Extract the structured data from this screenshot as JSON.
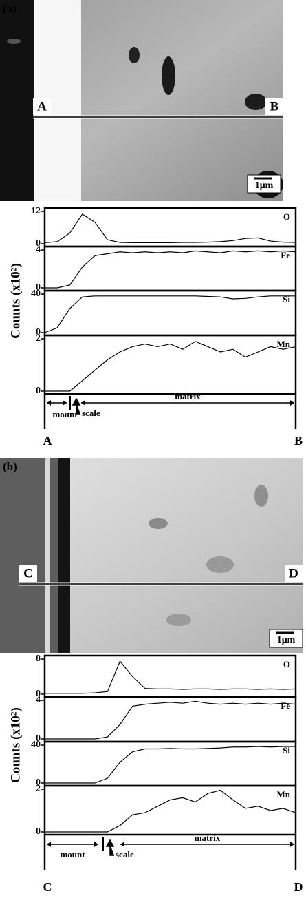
{
  "panels": [
    {
      "label": "(a)",
      "start": "A",
      "end": "B",
      "scale_bar": "1μm",
      "y_title": "Counts (x10²)",
      "regions": [
        "mount",
        "scale",
        "matrix"
      ],
      "traces": [
        {
          "element": "O",
          "ylim": [
            0,
            12
          ],
          "yticks": [
            0,
            12
          ],
          "values": [
            0.4,
            0.8,
            4,
            11,
            8,
            1.5,
            0.5,
            0.4,
            0.4,
            0.4,
            0.4,
            0.5,
            0.5,
            0.6,
            0.8,
            1.2,
            2,
            2.2,
            1,
            0.6,
            0.5
          ]
        },
        {
          "element": "Fe",
          "ylim": [
            0,
            4
          ],
          "yticks": [
            0,
            4
          ],
          "values": [
            0,
            0,
            0.3,
            2.2,
            3.4,
            3.6,
            3.8,
            3.7,
            3.8,
            3.7,
            3.8,
            3.7,
            3.9,
            3.8,
            3.7,
            3.9,
            3.8,
            3.9,
            3.8,
            3.9,
            3.8
          ]
        },
        {
          "element": "Si",
          "ylim": [
            0,
            40
          ],
          "yticks": [
            0,
            40
          ],
          "values": [
            0,
            5,
            25,
            37,
            38,
            38,
            38,
            38,
            38,
            38,
            38,
            38,
            38,
            37.5,
            37,
            35,
            35.5,
            37,
            38,
            38,
            38
          ]
        },
        {
          "element": "Mn",
          "ylim": [
            0,
            2
          ],
          "yticks": [
            0,
            2
          ],
          "values": [
            0,
            0,
            0,
            0.4,
            0.8,
            1.2,
            1.5,
            1.7,
            1.8,
            1.7,
            1.8,
            1.6,
            1.9,
            1.7,
            1.5,
            1.6,
            1.3,
            1.5,
            1.7,
            1.6,
            1.7
          ]
        }
      ]
    },
    {
      "label": "(b)",
      "start": "C",
      "end": "D",
      "scale_bar": "1μm",
      "y_title": "Counts (x10²)",
      "regions": [
        "mount",
        "scale",
        "matrix"
      ],
      "traces": [
        {
          "element": "O",
          "ylim": [
            0,
            8
          ],
          "yticks": [
            0,
            8
          ],
          "values": [
            0.2,
            0.2,
            0.2,
            0.2,
            0.3,
            0.6,
            7.5,
            4,
            1.3,
            1.2,
            1.2,
            1.1,
            1.2,
            1.2,
            1.1,
            1.2,
            1.2,
            1.1,
            1.2,
            1.1,
            1.2
          ]
        },
        {
          "element": "Fe",
          "ylim": [
            0,
            4
          ],
          "yticks": [
            0,
            4
          ],
          "values": [
            0,
            0,
            0,
            0,
            0,
            0.2,
            1.5,
            3.4,
            3.6,
            3.7,
            3.8,
            3.7,
            3.9,
            3.7,
            3.6,
            3.7,
            3.6,
            3.7,
            3.6,
            3.7,
            3.6
          ]
        },
        {
          "element": "Si",
          "ylim": [
            0,
            40
          ],
          "yticks": [
            0,
            40
          ],
          "values": [
            0,
            0,
            0,
            0,
            0,
            5,
            22,
            33,
            36,
            36,
            36.5,
            36,
            36,
            36.5,
            37,
            38,
            38,
            38.5,
            38,
            38.5,
            38.5
          ]
        },
        {
          "element": "Mn",
          "ylim": [
            0,
            2
          ],
          "yticks": [
            0,
            2
          ],
          "values": [
            0,
            0,
            0,
            0,
            0,
            0,
            0.3,
            0.8,
            0.9,
            1.2,
            1.5,
            1.6,
            1.4,
            1.8,
            1.95,
            1.5,
            1.1,
            1.2,
            1.0,
            1.1,
            0.9
          ]
        }
      ]
    }
  ]
}
